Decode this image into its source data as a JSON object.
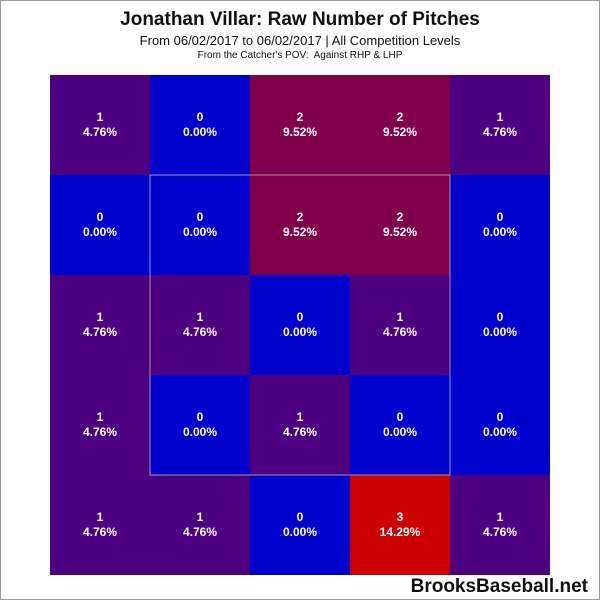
{
  "chart_data": {
    "type": "heatmap",
    "title": "Jonathan Villar: Raw Number of Pitches",
    "subtitle": "From 06/02/2017 to 06/02/2017 | All Competition Levels",
    "subtitle2": "From the Catcher's POV:  Against RHP & LHP",
    "rows": 5,
    "cols": 5,
    "cells": [
      [
        {
          "count": "1",
          "pct": "4.76%"
        },
        {
          "count": "0",
          "pct": "0.00%"
        },
        {
          "count": "2",
          "pct": "9.52%"
        },
        {
          "count": "2",
          "pct": "9.52%"
        },
        {
          "count": "1",
          "pct": "4.76%"
        }
      ],
      [
        {
          "count": "0",
          "pct": "0.00%"
        },
        {
          "count": "0",
          "pct": "0.00%"
        },
        {
          "count": "2",
          "pct": "9.52%"
        },
        {
          "count": "2",
          "pct": "9.52%"
        },
        {
          "count": "0",
          "pct": "0.00%"
        }
      ],
      [
        {
          "count": "1",
          "pct": "4.76%"
        },
        {
          "count": "1",
          "pct": "4.76%"
        },
        {
          "count": "0",
          "pct": "0.00%"
        },
        {
          "count": "1",
          "pct": "4.76%"
        },
        {
          "count": "0",
          "pct": "0.00%"
        }
      ],
      [
        {
          "count": "1",
          "pct": "4.76%"
        },
        {
          "count": "0",
          "pct": "0.00%"
        },
        {
          "count": "1",
          "pct": "4.76%"
        },
        {
          "count": "0",
          "pct": "0.00%"
        },
        {
          "count": "0",
          "pct": "0.00%"
        }
      ],
      [
        {
          "count": "1",
          "pct": "4.76%"
        },
        {
          "count": "1",
          "pct": "4.76%"
        },
        {
          "count": "0",
          "pct": "0.00%"
        },
        {
          "count": "3",
          "pct": "14.29%"
        },
        {
          "count": "1",
          "pct": "4.76%"
        }
      ]
    ],
    "colors": {
      "0": "#0000cc",
      "1": "#4c0080",
      "2": "#80004c",
      "3": "#cc0000"
    },
    "strike_zone_border_color": "#9a9a9a"
  },
  "watermark": "BrooksBaseball.net"
}
